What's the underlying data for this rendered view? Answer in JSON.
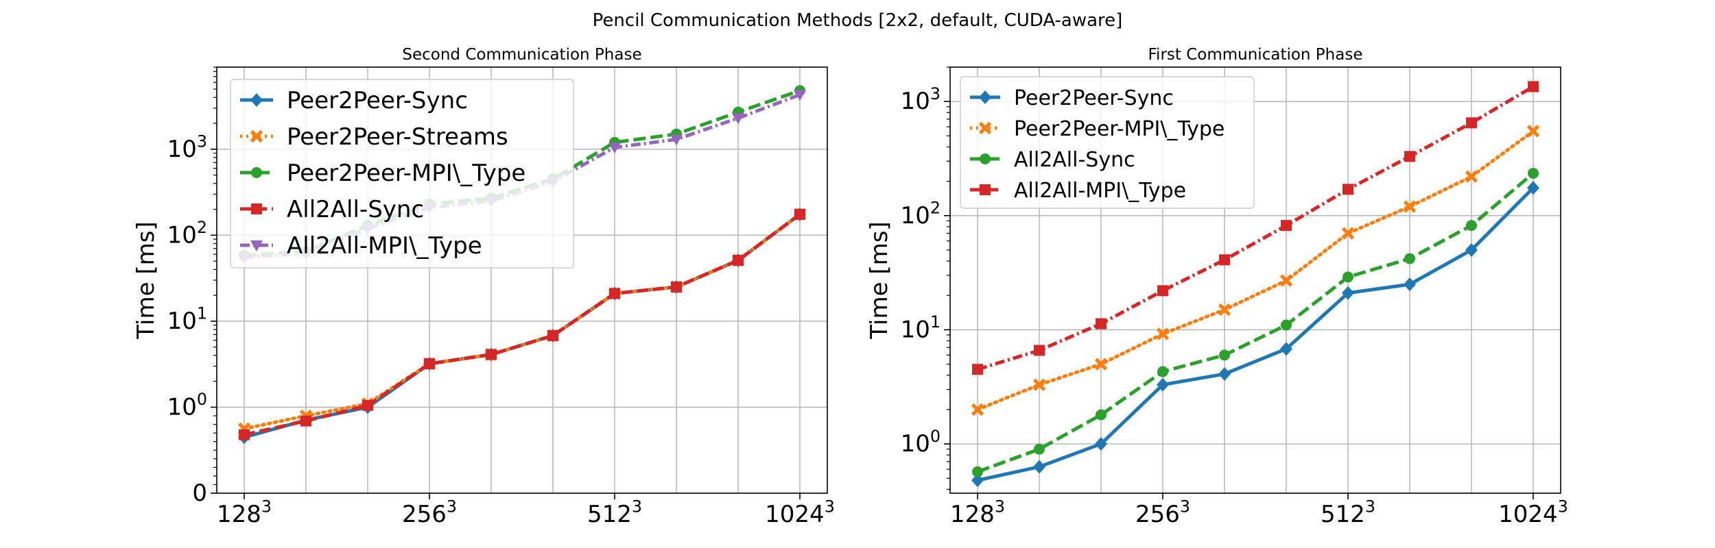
{
  "figure": {
    "title": "Pencil Communication Methods [2x2, default, CUDA-aware]"
  },
  "chart_data": [
    {
      "type": "line",
      "title": "Second Communication Phase",
      "xlabel": "",
      "ylabel": "Time [ms]",
      "yscale": "symlog",
      "ylim": [
        0,
        9000
      ],
      "grid": true,
      "legend_position": "top-left",
      "x": [
        0,
        1,
        2,
        3,
        4,
        5,
        6,
        7,
        8,
        9
      ],
      "xticks": [
        {
          "x": 0,
          "base": "128",
          "exp": "3"
        },
        {
          "x": 3,
          "base": "256",
          "exp": "3"
        },
        {
          "x": 6,
          "base": "512",
          "exp": "3"
        },
        {
          "x": 9,
          "base": "1024",
          "exp": "3"
        }
      ],
      "yticks": [
        {
          "v": 0,
          "base": "0",
          "exp": ""
        },
        {
          "v": 1,
          "base": "10",
          "exp": "0"
        },
        {
          "v": 10,
          "base": "10",
          "exp": "1"
        },
        {
          "v": 100,
          "base": "10",
          "exp": "2"
        },
        {
          "v": 1000,
          "base": "10",
          "exp": "3"
        }
      ],
      "series": [
        {
          "name": "Peer2Peer-Sync",
          "color": "#1f77b4",
          "dash": "",
          "marker": "diamond",
          "values": [
            0.65,
            0.85,
            1.0,
            3.2,
            4.1,
            6.8,
            21,
            25,
            51,
            175
          ]
        },
        {
          "name": "Peer2Peer-Streams",
          "color": "#ff7f0e",
          "dash": "3,6",
          "marker": "x",
          "values": [
            0.75,
            0.9,
            1.1,
            3.2,
            4.1,
            6.8,
            21,
            25,
            51,
            175
          ]
        },
        {
          "name": "Peer2Peer-MPI\\_Type",
          "color": "#2ca02c",
          "dash": "18,7",
          "marker": "circle",
          "values": [
            58,
            65,
            130,
            230,
            270,
            450,
            1200,
            1500,
            2700,
            4800
          ]
        },
        {
          "name": "All2All-Sync",
          "color": "#d62728",
          "dash": "16,7",
          "marker": "square",
          "values": [
            0.68,
            0.84,
            1.05,
            3.2,
            4.1,
            6.8,
            21,
            25,
            51,
            175
          ]
        },
        {
          "name": "All2All-MPI\\_Type",
          "color": "#9467bd",
          "dash": "14,5,3,5",
          "marker": "triangle-down",
          "values": [
            55,
            62,
            120,
            210,
            250,
            420,
            1050,
            1300,
            2300,
            4300
          ]
        }
      ]
    },
    {
      "type": "line",
      "title": "First Communication Phase",
      "xlabel": "",
      "ylabel": "Time [ms]",
      "yscale": "log",
      "ylim": [
        0.37,
        2000
      ],
      "grid": true,
      "legend_position": "top-left",
      "x": [
        0,
        1,
        2,
        3,
        4,
        5,
        6,
        7,
        8,
        9
      ],
      "xticks": [
        {
          "x": 0,
          "base": "128",
          "exp": "3"
        },
        {
          "x": 3,
          "base": "256",
          "exp": "3"
        },
        {
          "x": 6,
          "base": "512",
          "exp": "3"
        },
        {
          "x": 9,
          "base": "1024",
          "exp": "3"
        }
      ],
      "yticks": [
        {
          "v": 1,
          "base": "10",
          "exp": "0"
        },
        {
          "v": 10,
          "base": "10",
          "exp": "1"
        },
        {
          "v": 100,
          "base": "10",
          "exp": "2"
        },
        {
          "v": 1000,
          "base": "10",
          "exp": "3"
        }
      ],
      "series": [
        {
          "name": "Peer2Peer-Sync",
          "color": "#1f77b4",
          "dash": "",
          "marker": "diamond",
          "values": [
            0.48,
            0.63,
            1.0,
            3.3,
            4.1,
            6.8,
            21,
            25,
            50,
            175
          ]
        },
        {
          "name": "Peer2Peer-MPI\\_Type",
          "color": "#ff7f0e",
          "dash": "3,6",
          "marker": "x",
          "values": [
            2.0,
            3.3,
            5.0,
            9.2,
            15,
            27,
            70,
            120,
            220,
            550
          ]
        },
        {
          "name": "All2All-Sync",
          "color": "#2ca02c",
          "dash": "18,7",
          "marker": "circle",
          "values": [
            0.57,
            0.9,
            1.8,
            4.3,
            6.0,
            11,
            29,
            42,
            82,
            235
          ]
        },
        {
          "name": "All2All-MPI\\_Type",
          "color": "#d62728",
          "dash": "14,5,3,5",
          "marker": "square",
          "values": [
            4.5,
            6.6,
            11.3,
            22,
            41,
            82,
            170,
            330,
            650,
            1350
          ]
        }
      ]
    }
  ]
}
